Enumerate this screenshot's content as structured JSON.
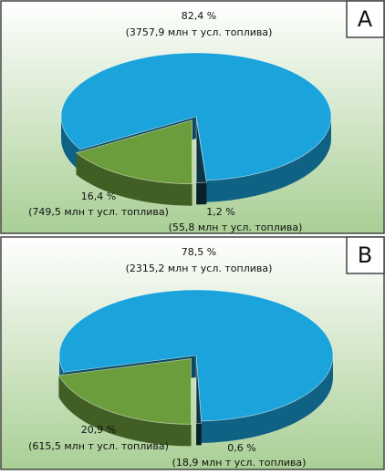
{
  "chart_data": [
    {
      "type": "pie",
      "title": "A",
      "values": [
        82.4,
        16.4,
        1.2
      ],
      "value_labels": [
        "82,4 %",
        "16,4 %",
        "1,2 %"
      ],
      "amounts": [
        3757.9,
        749.5,
        55.8
      ],
      "amount_labels": [
        "(3757,9 млн т усл. топлива)",
        "(749,5 млн т усл. топлива)",
        "(55,8 млн т усл. топлива)"
      ],
      "colors": [
        "#1ba3dc",
        "#6c9d3d",
        "#0c3546"
      ]
    },
    {
      "type": "pie",
      "title": "B",
      "values": [
        78.5,
        20.9,
        0.6
      ],
      "value_labels": [
        "78,5 %",
        "20,9 %",
        "0,6 %"
      ],
      "amounts": [
        2315.2,
        615.5,
        18.9
      ],
      "amount_labels": [
        "(2315,2 млн т усл. топлива)",
        "(615,5 млн т усл. топлива)",
        "(18,9 млн т усл. топлива)"
      ],
      "colors": [
        "#1ba3dc",
        "#6c9d3d",
        "#0c3546"
      ]
    }
  ]
}
